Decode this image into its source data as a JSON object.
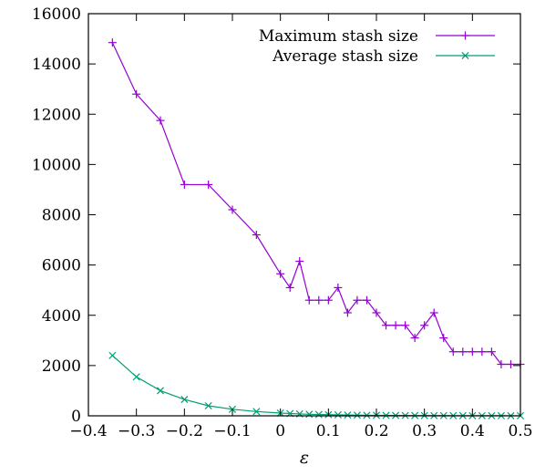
{
  "chart_data": {
    "type": "line",
    "xlabel": "ε",
    "ylabel": "",
    "xlim": [
      -0.4,
      0.5
    ],
    "ylim": [
      0,
      16000
    ],
    "xticks": [
      -0.4,
      -0.3,
      -0.2,
      -0.1,
      0,
      0.1,
      0.2,
      0.3,
      0.4,
      0.5
    ],
    "xtick_labels": [
      "−0.4",
      "−0.3",
      "−0.2",
      "−0.1",
      "0",
      "0.1",
      "0.2",
      "0.3",
      "0.4",
      "0.5"
    ],
    "yticks": [
      0,
      2000,
      4000,
      6000,
      8000,
      10000,
      12000,
      14000,
      16000
    ],
    "ytick_labels": [
      "0",
      "2000",
      "4000",
      "6000",
      "8000",
      "10000",
      "12000",
      "14000",
      "16000"
    ],
    "grid": false,
    "legend_position": "top-right",
    "series": [
      {
        "name": "Maximum stash size",
        "color": "#9400d3",
        "marker": "plus",
        "points": [
          [
            -0.35,
            14850
          ],
          [
            -0.3,
            12800
          ],
          [
            -0.25,
            11750
          ],
          [
            -0.2,
            9200
          ],
          [
            -0.15,
            9200
          ],
          [
            -0.1,
            8200
          ],
          [
            -0.05,
            7200
          ],
          [
            0.0,
            5650
          ],
          [
            0.02,
            5100
          ],
          [
            0.04,
            6150
          ],
          [
            0.06,
            4600
          ],
          [
            0.08,
            4600
          ],
          [
            0.1,
            4600
          ],
          [
            0.12,
            5100
          ],
          [
            0.14,
            4100
          ],
          [
            0.16,
            4600
          ],
          [
            0.18,
            4600
          ],
          [
            0.2,
            4100
          ],
          [
            0.22,
            3600
          ],
          [
            0.24,
            3600
          ],
          [
            0.26,
            3600
          ],
          [
            0.28,
            3100
          ],
          [
            0.3,
            3600
          ],
          [
            0.32,
            4100
          ],
          [
            0.34,
            3100
          ],
          [
            0.36,
            2550
          ],
          [
            0.38,
            2550
          ],
          [
            0.4,
            2550
          ],
          [
            0.42,
            2550
          ],
          [
            0.44,
            2550
          ],
          [
            0.46,
            2050
          ],
          [
            0.48,
            2050
          ],
          [
            0.5,
            2050
          ]
        ]
      },
      {
        "name": "Average stash size",
        "color": "#009e73",
        "marker": "cross",
        "points": [
          [
            -0.35,
            2400
          ],
          [
            -0.3,
            1550
          ],
          [
            -0.25,
            1000
          ],
          [
            -0.2,
            650
          ],
          [
            -0.15,
            400
          ],
          [
            -0.1,
            260
          ],
          [
            -0.05,
            170
          ],
          [
            0.0,
            110
          ],
          [
            0.02,
            90
          ],
          [
            0.04,
            75
          ],
          [
            0.06,
            62
          ],
          [
            0.08,
            52
          ],
          [
            0.1,
            45
          ],
          [
            0.12,
            38
          ],
          [
            0.14,
            32
          ],
          [
            0.16,
            27
          ],
          [
            0.18,
            23
          ],
          [
            0.2,
            20
          ],
          [
            0.22,
            17
          ],
          [
            0.24,
            15
          ],
          [
            0.26,
            13
          ],
          [
            0.28,
            11
          ],
          [
            0.3,
            10
          ],
          [
            0.32,
            9
          ],
          [
            0.34,
            8
          ],
          [
            0.36,
            7
          ],
          [
            0.38,
            6
          ],
          [
            0.4,
            5
          ],
          [
            0.42,
            5
          ],
          [
            0.44,
            4
          ],
          [
            0.46,
            4
          ],
          [
            0.48,
            3
          ],
          [
            0.5,
            3
          ]
        ]
      }
    ]
  }
}
